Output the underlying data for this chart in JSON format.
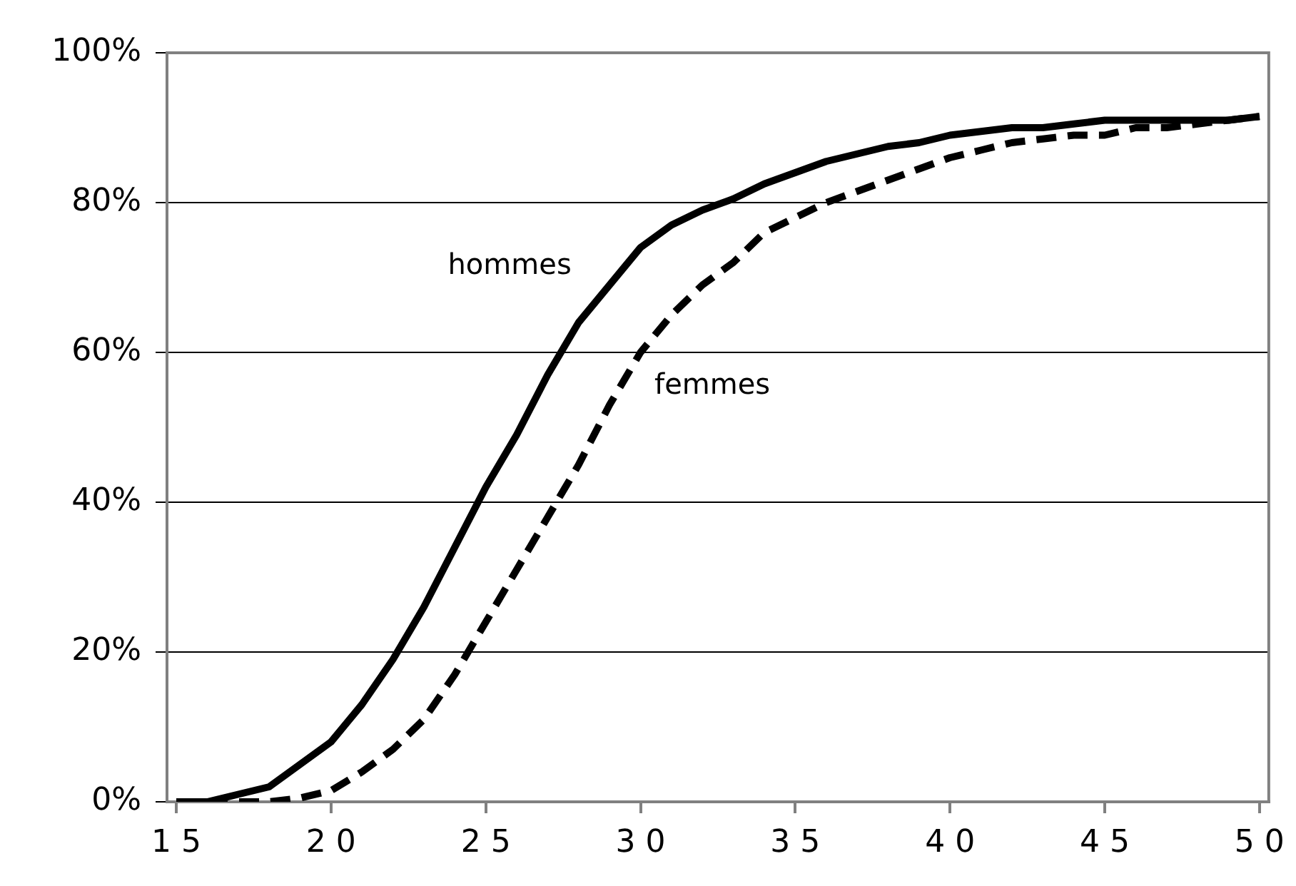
{
  "chart_data": {
    "type": "line",
    "x": [
      15,
      16,
      17,
      18,
      19,
      20,
      21,
      22,
      23,
      24,
      25,
      26,
      27,
      28,
      29,
      30,
      31,
      32,
      33,
      34,
      35,
      36,
      37,
      38,
      39,
      40,
      41,
      42,
      43,
      44,
      45,
      46,
      47,
      48,
      49,
      50
    ],
    "series": [
      {
        "name": "hommes",
        "color": "#000000",
        "line_style": "solid",
        "values": [
          0,
          0,
          1,
          2,
          5,
          8,
          13,
          19,
          26,
          34,
          42,
          49,
          57,
          64,
          69,
          74,
          77,
          79,
          80.5,
          82.5,
          84,
          85.5,
          86.5,
          87.5,
          88,
          89,
          89.5,
          90,
          90,
          90.5,
          91,
          91,
          91,
          91,
          91,
          91.5
        ]
      },
      {
        "name": "femmes",
        "color": "#000000",
        "line_style": "dashed",
        "values": [
          0,
          0,
          0,
          0,
          0.5,
          1.5,
          4,
          7,
          11,
          17,
          24,
          31,
          38,
          45,
          53,
          60,
          65,
          69,
          72,
          76,
          78,
          80,
          81.5,
          83,
          84.5,
          86,
          87,
          88,
          88.5,
          89,
          89,
          90,
          90,
          90.5,
          91,
          91.5
        ]
      }
    ],
    "xlim": [
      14.7,
      50.3
    ],
    "xticks": [
      15,
      20,
      25,
      30,
      35,
      40,
      45,
      50
    ],
    "ylim": [
      0,
      100
    ],
    "yticks": [
      {
        "value": 0,
        "label": "0%"
      },
      {
        "value": 20,
        "label": "20%"
      },
      {
        "value": 40,
        "label": "40%"
      },
      {
        "value": 60,
        "label": "60%"
      },
      {
        "value": 80,
        "label": "80%"
      },
      {
        "value": 100,
        "label": "100%"
      }
    ],
    "grid": "y",
    "legend": false,
    "marker": "none"
  }
}
